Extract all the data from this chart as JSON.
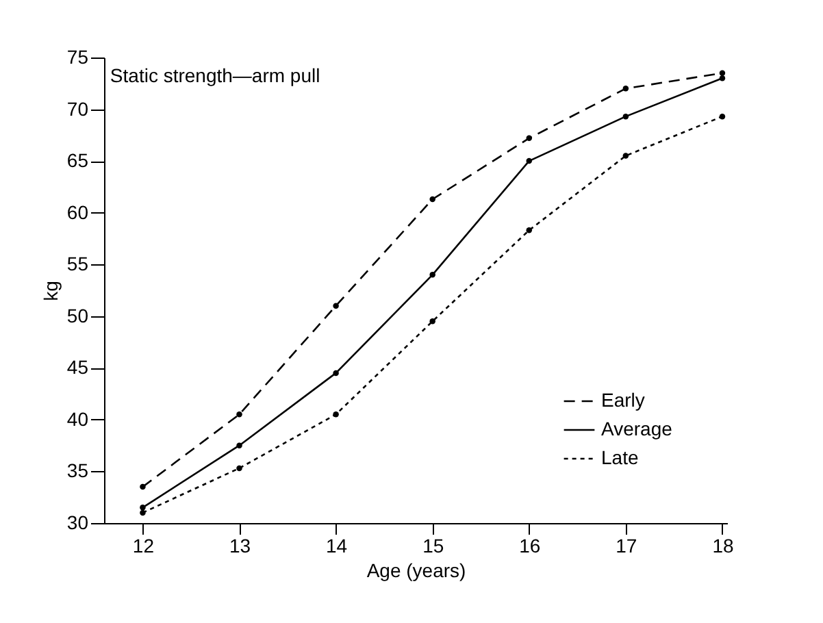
{
  "chart_data": {
    "type": "line",
    "title": "Static strength—arm pull",
    "xlabel": "Age (years)",
    "ylabel": "kg",
    "x": [
      12,
      13,
      14,
      15,
      16,
      17,
      18
    ],
    "series": [
      {
        "name": "Early",
        "color": "#000000",
        "line_style": "dashed",
        "values": [
          33.5,
          40.5,
          51,
          61.3,
          67.2,
          72,
          73.5
        ]
      },
      {
        "name": "Average",
        "color": "#000000",
        "line_style": "solid",
        "values": [
          31.5,
          37.5,
          44.5,
          54,
          65,
          69.3,
          73
        ]
      },
      {
        "name": "Late",
        "color": "#000000",
        "line_style": "dotted",
        "values": [
          31,
          35.3,
          40.5,
          49.5,
          58.3,
          65.5,
          69.3
        ]
      }
    ],
    "xlim": [
      11.6,
      18.05
    ],
    "xticks": [
      12,
      13,
      14,
      15,
      16,
      17,
      18
    ],
    "ylim": [
      30,
      75
    ],
    "yticks": [
      30,
      35,
      40,
      45,
      50,
      55,
      60,
      65,
      70,
      75
    ],
    "grid": false,
    "legend": "bottom right",
    "marker": "circle"
  }
}
